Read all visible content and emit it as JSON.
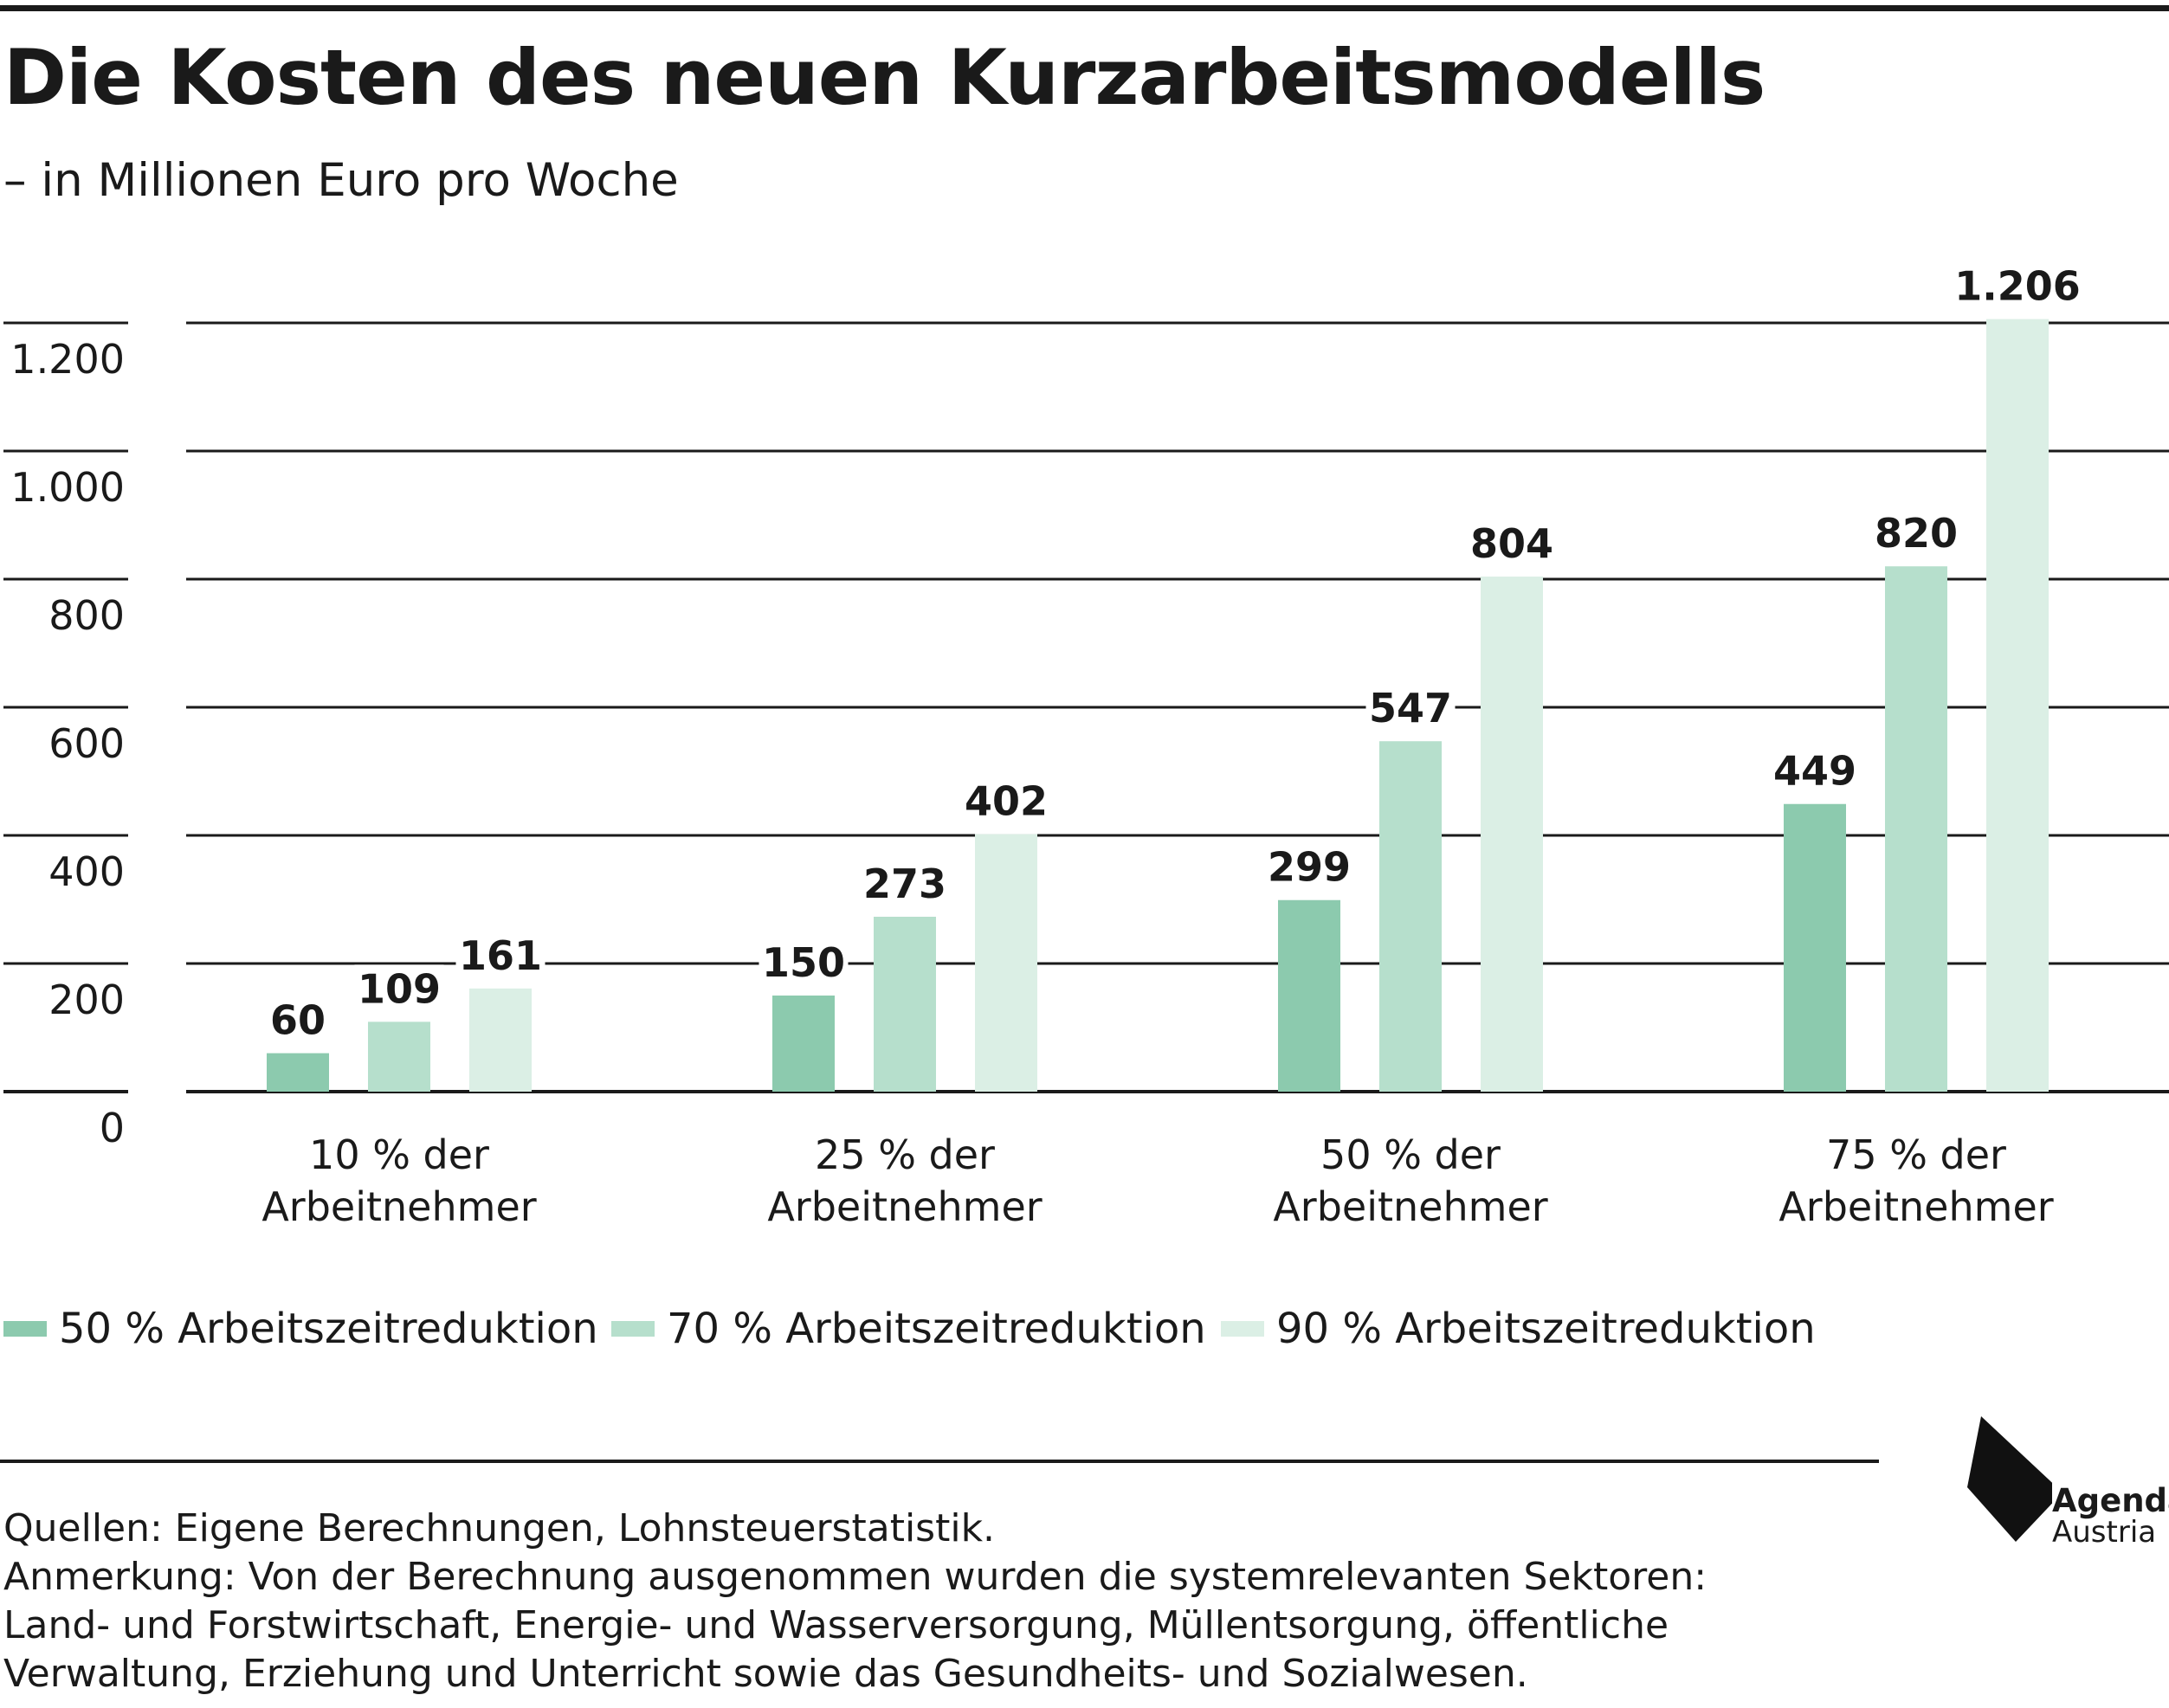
{
  "title": "Die Kosten des neuen Kurzarbeitsmodells",
  "subtitle": "– in Millionen Euro pro Woche",
  "colors": {
    "series1": "#8ccaae",
    "series2": "#b6dfcc",
    "series3": "#dbefe5",
    "ink": "#1a1a1a"
  },
  "chart_data": {
    "type": "bar",
    "categories": [
      [
        "10 % der",
        "Arbeitnehmer"
      ],
      [
        "25 % der",
        "Arbeitnehmer"
      ],
      [
        "50 % der",
        "Arbeitnehmer"
      ],
      [
        "75 % der",
        "Arbeitnehmer"
      ]
    ],
    "series": [
      {
        "name": "50 % Arbeitszeitreduktion",
        "values": [
          60,
          150,
          299,
          449
        ]
      },
      {
        "name": "70 % Arbeitszeitreduktion",
        "values": [
          109,
          273,
          547,
          820
        ]
      },
      {
        "name": "90 % Arbeitszeitreduktion",
        "values": [
          161,
          402,
          804,
          1206
        ]
      }
    ],
    "value_labels": [
      [
        "60",
        "150",
        "299",
        "449"
      ],
      [
        "109",
        "273",
        "547",
        "820"
      ],
      [
        "161",
        "402",
        "804",
        "1.206"
      ]
    ],
    "yticks": [
      0,
      200,
      400,
      600,
      800,
      1000,
      1200
    ],
    "ytick_labels": [
      "0",
      "200",
      "400",
      "600",
      "800",
      "1.000",
      "1.200"
    ],
    "ylim": [
      0,
      1200
    ],
    "grid": true,
    "legend": "bottom-left"
  },
  "legend": [
    {
      "label": "50 % Arbeitszeitreduktion"
    },
    {
      "label": "70 % Arbeitszeitreduktion"
    },
    {
      "label": "90 % Arbeitszeitreduktion"
    }
  ],
  "notes": {
    "sources": "Quellen: Eigene Berechnungen, Lohnsteuerstatistik.",
    "remark_line1": "Anmerkung: Von der Berechnung ausgenommen wurden die systemrelevanten Sektoren:",
    "remark_line2": "Land- und Forstwirtschaft, Energie- und Wasserversorgung, Müllentsorgung, öffentliche",
    "remark_line3": "Verwaltung, Erziehung und Unterricht sowie das Gesundheits- und Sozialwesen."
  },
  "logo": {
    "name": "Agenda",
    "sub": "Austria"
  }
}
